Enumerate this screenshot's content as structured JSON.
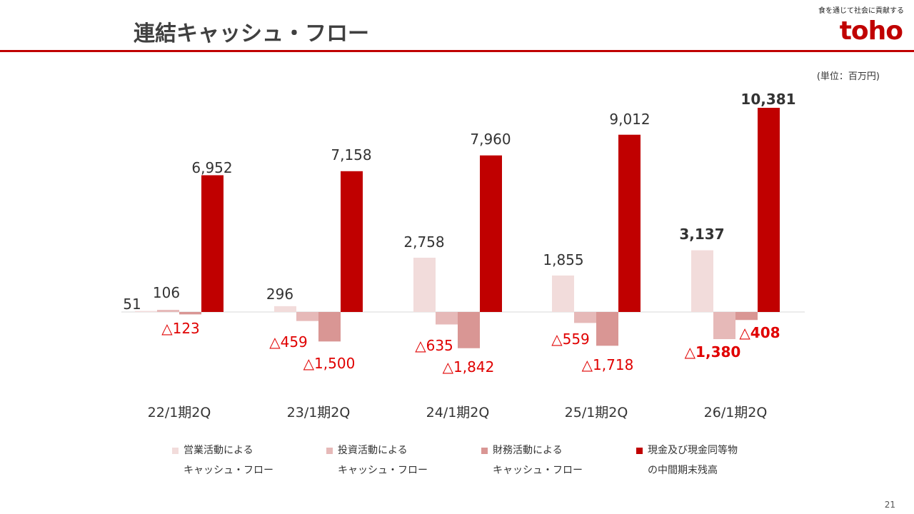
{
  "header": {
    "title": "連結キャッシュ・フロー",
    "tagline": "食を通じて社会に貢献する",
    "logo": "toho"
  },
  "unit_label": "(単位：百万円)",
  "page_number": "21",
  "colors": {
    "brand": "#c00000",
    "operating": "#f2dcdb",
    "investing": "#e6b9b8",
    "financing": "#d99694",
    "cash": "#c00000",
    "negative_label": "#e00000"
  },
  "chart_data": {
    "type": "bar",
    "categories": [
      "22/1期2Q",
      "23/1期2Q",
      "24/1期2Q",
      "25/1期2Q",
      "26/1期2Q"
    ],
    "series": [
      {
        "name": "営業活動によるキャッシュ・フロー",
        "values": [
          51,
          296,
          2758,
          1855,
          3137
        ],
        "labels": [
          "51",
          "296",
          "2,758",
          "1,855",
          "3,137"
        ]
      },
      {
        "name": "投資活動によるキャッシュ・フロー",
        "values": [
          106,
          -459,
          -635,
          -559,
          -1380
        ],
        "labels": [
          "106",
          "△459",
          "△635",
          "△559",
          "△1,380"
        ]
      },
      {
        "name": "財務活動によるキャッシュ・フロー",
        "values": [
          -123,
          -1500,
          -1842,
          -1718,
          -408
        ],
        "labels": [
          "△123",
          "△1,500",
          "△1,842",
          "△1,718",
          "△408"
        ]
      },
      {
        "name": "現金及び現金同等物の中間期末残高",
        "values": [
          6952,
          7158,
          7960,
          9012,
          10381
        ],
        "labels": [
          "6,952",
          "7,158",
          "7,960",
          "9,012",
          "10,381"
        ]
      }
    ],
    "highlight_category_index": 4,
    "legend": [
      {
        "line1": "営業活動による",
        "line2": "キャッシュ・フロー"
      },
      {
        "line1": "投資活動による",
        "line2": "キャッシュ・フロー"
      },
      {
        "line1": "財務活動による",
        "line2": "キャッシュ・フロー"
      },
      {
        "line1": "現金及び現金同等物",
        "line2": "の中間期末残高"
      }
    ],
    "legend_position": "bottom",
    "grid": false
  }
}
